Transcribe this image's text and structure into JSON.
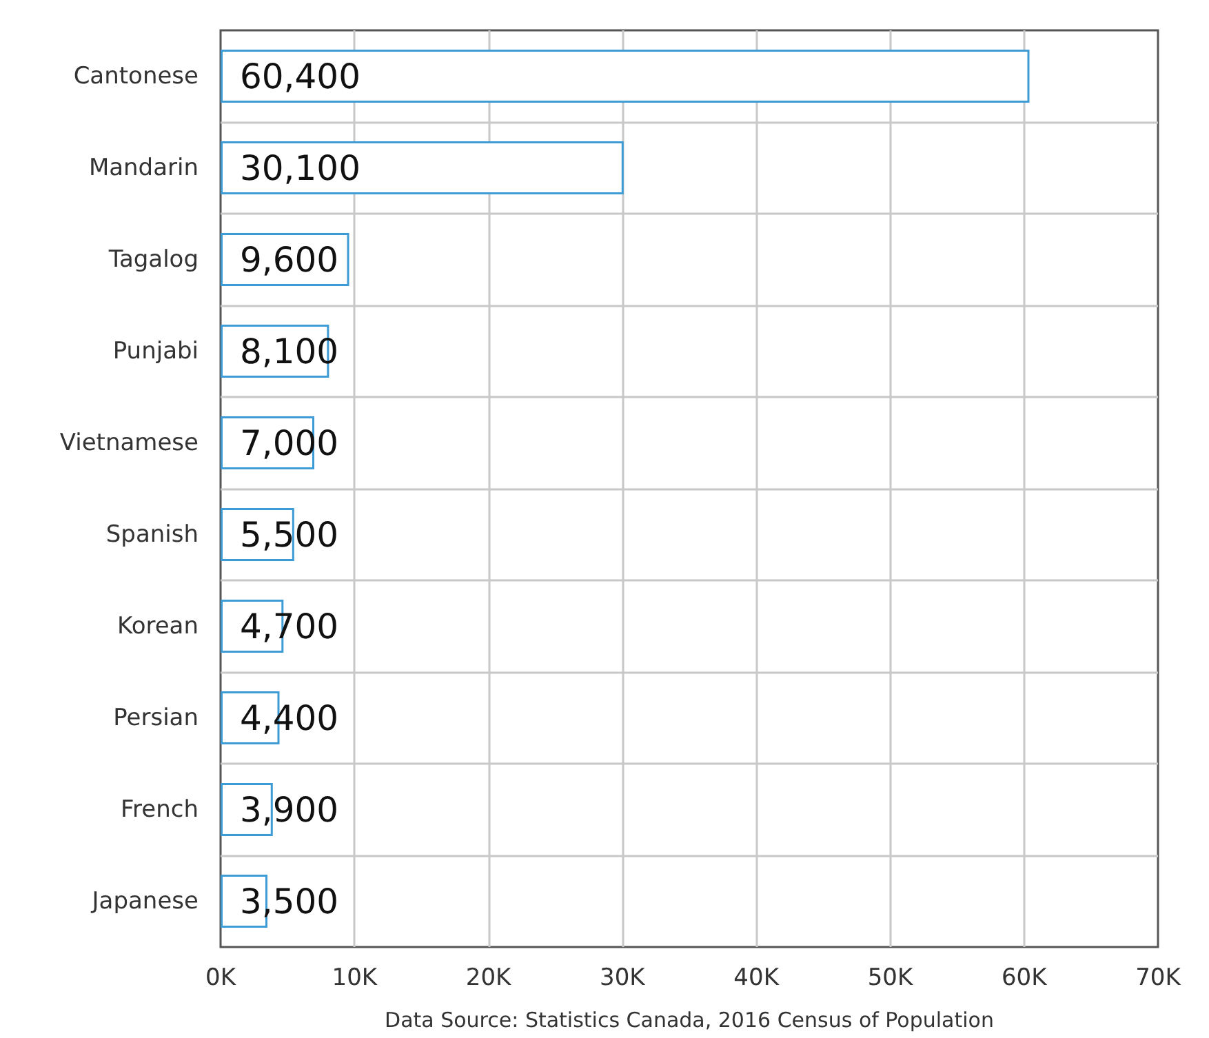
{
  "chart_data": {
    "type": "bar",
    "orientation": "horizontal",
    "categories": [
      "Cantonese",
      "Mandarin",
      "Tagalog",
      "Punjabi",
      "Vietnamese",
      "Spanish",
      "Korean",
      "Persian",
      "French",
      "Japanese"
    ],
    "values": [
      60400,
      30100,
      9600,
      8100,
      7000,
      5500,
      4700,
      4400,
      3900,
      3500
    ],
    "value_labels": [
      "60,400",
      "30,100",
      "9,600",
      "8,100",
      "7,000",
      "5,500",
      "4,700",
      "4,400",
      "3,900",
      "3,500"
    ],
    "color": "#3d9cd6",
    "xlim": [
      0,
      70000
    ],
    "xticks": [
      {
        "value": 0,
        "label": "0K"
      },
      {
        "value": 10000,
        "label": "10K"
      },
      {
        "value": 20000,
        "label": "20K"
      },
      {
        "value": 30000,
        "label": "30K"
      },
      {
        "value": 40000,
        "label": "40K"
      },
      {
        "value": 50000,
        "label": "50K"
      },
      {
        "value": 60000,
        "label": "60K"
      },
      {
        "value": 70000,
        "label": "70K"
      }
    ],
    "grid": true,
    "annotations": [
      "Data Source: Statistics Canada, 2016 Census of Population"
    ]
  }
}
